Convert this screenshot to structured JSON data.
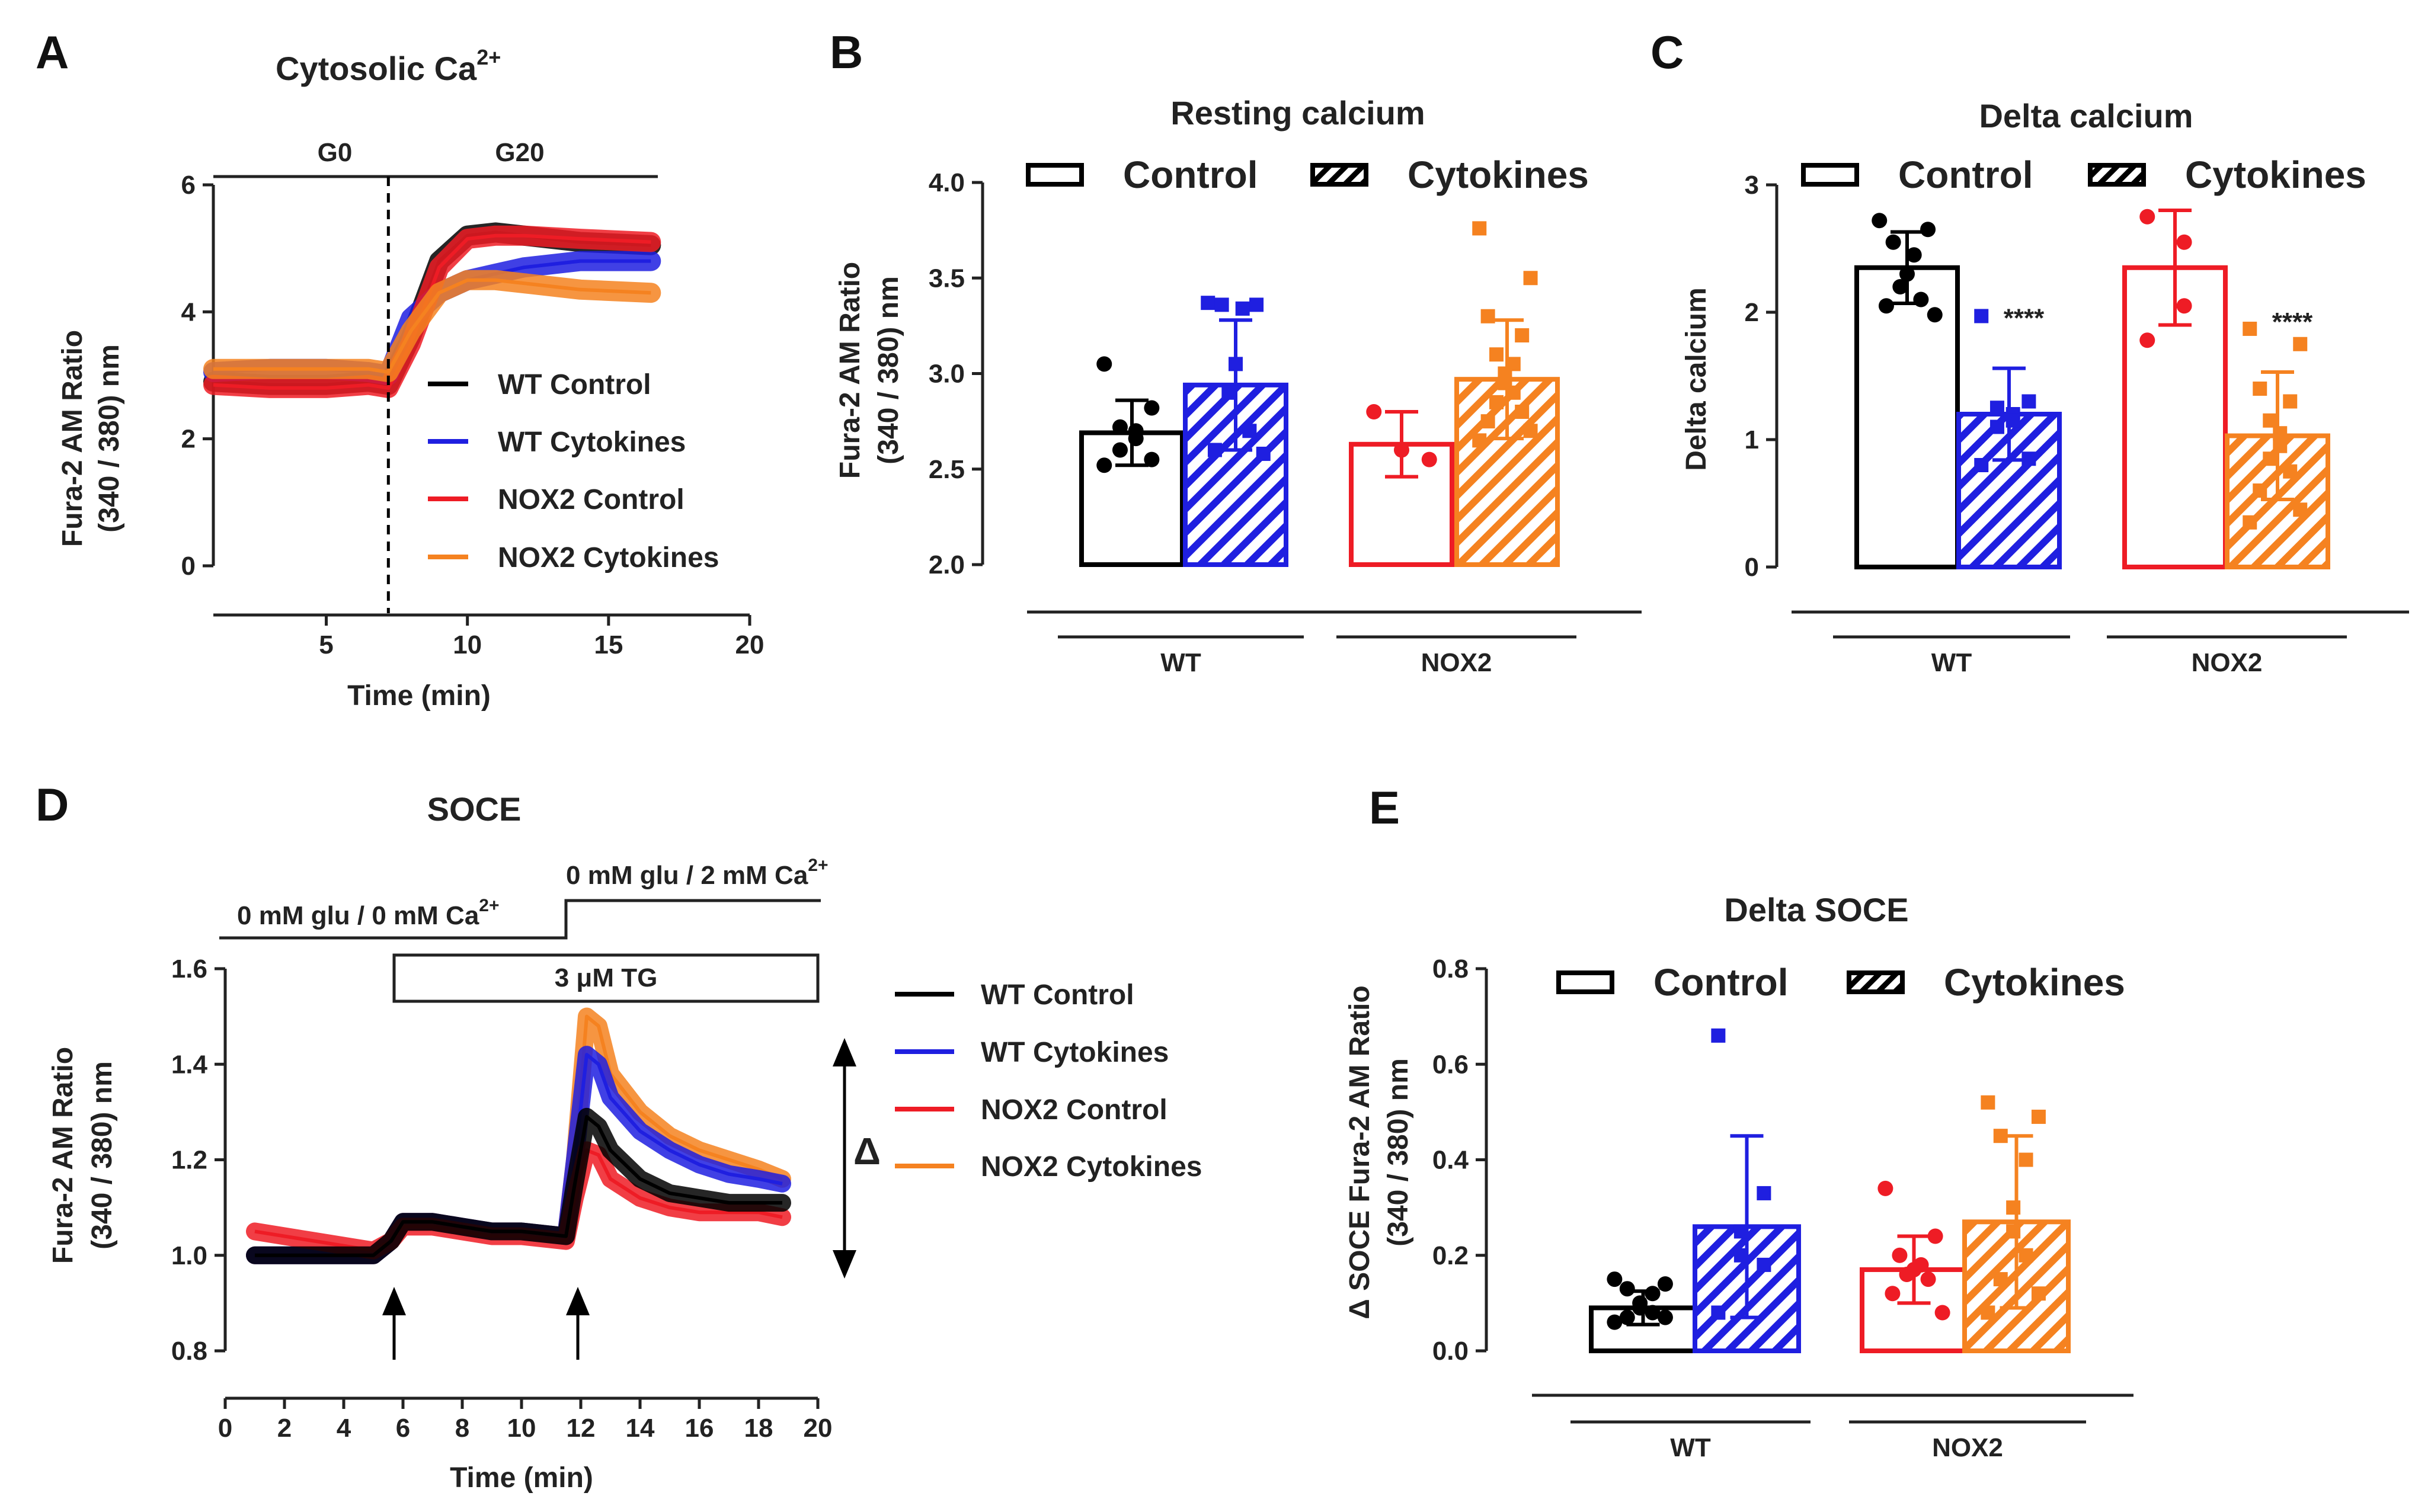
{
  "colors": {
    "wt_control": "#000000",
    "wt_cytokines": "#1f1fe0",
    "nox2_control": "#ee1c25",
    "nox2_cytokines": "#f58220",
    "axis": "#222222"
  },
  "chart_data": [
    {
      "panel": "A",
      "type": "line",
      "title_main": "Cytosolic Ca",
      "title_sup": "2+",
      "xlabel": "Time (min)",
      "ylabel_line1": "Fura-2 AM Ratio",
      "ylabel_line2": "(340 / 380) nm",
      "xlim": [
        1,
        20
      ],
      "ylim": [
        0,
        6
      ],
      "xticks": [
        "5",
        "10",
        "15",
        "20"
      ],
      "xtick_values": [
        5,
        10,
        15,
        20
      ],
      "yticks": [
        "0",
        "2",
        "4",
        "6"
      ],
      "ytick_values": [
        0,
        2,
        4,
        6
      ],
      "conditions": [
        "G0",
        "G20"
      ],
      "condition_switch_time": 7.2,
      "legend": [
        "WT Control",
        "WT Cytokines",
        "NOX2 Control",
        "NOX2 Cytokines"
      ],
      "series": [
        {
          "name": "WT Control",
          "x": [
            1,
            3,
            5,
            6.5,
            7.2,
            8,
            9,
            10,
            11,
            12,
            14,
            16.5
          ],
          "y": [
            2.9,
            2.85,
            2.85,
            2.9,
            2.85,
            3.6,
            4.8,
            5.2,
            5.25,
            5.2,
            5.1,
            5.05
          ]
        },
        {
          "name": "WT Cytokines",
          "x": [
            1,
            3,
            5,
            6.5,
            7.2,
            8,
            9,
            10,
            11,
            12,
            14,
            16.5
          ],
          "y": [
            3.05,
            3.1,
            3.1,
            3.05,
            3.0,
            3.9,
            4.3,
            4.5,
            4.6,
            4.7,
            4.8,
            4.8
          ]
        },
        {
          "name": "NOX2 Control",
          "x": [
            1,
            3,
            5,
            6.5,
            7.2,
            8,
            9,
            10,
            11,
            12,
            14,
            16.5
          ],
          "y": [
            2.85,
            2.8,
            2.8,
            2.85,
            2.8,
            3.5,
            4.7,
            5.15,
            5.2,
            5.2,
            5.15,
            5.1
          ]
        },
        {
          "name": "NOX2 Cytokines",
          "x": [
            1,
            3,
            5,
            6.5,
            7.2,
            8,
            9,
            10,
            11,
            12,
            14,
            16.5
          ],
          "y": [
            3.1,
            3.1,
            3.1,
            3.1,
            3.05,
            3.7,
            4.3,
            4.5,
            4.5,
            4.45,
            4.35,
            4.3
          ]
        }
      ]
    },
    {
      "panel": "B",
      "type": "bar",
      "title": "Resting calcium",
      "ylabel_line1": "Fura-2 AM Ratio",
      "ylabel_line2": "(340 / 380) nm",
      "ylim": [
        2.0,
        4.0
      ],
      "yticks": [
        "2.0",
        "2.5",
        "3.0",
        "3.5",
        "4.0"
      ],
      "ytick_values": [
        2.0,
        2.5,
        3.0,
        3.5,
        4.0
      ],
      "legend": [
        "Control",
        "Cytokines"
      ],
      "groups": [
        "WT",
        "NOX2"
      ],
      "bars": [
        {
          "name": "WT Control",
          "mean": 2.69,
          "sd": 0.17,
          "points": [
            3.05,
            2.82,
            2.72,
            2.7,
            2.66,
            2.6,
            2.55,
            2.52
          ]
        },
        {
          "name": "WT Cytokines",
          "mean": 2.94,
          "sd": 0.34,
          "points": [
            3.37,
            3.36,
            3.36,
            3.34,
            3.05,
            2.9,
            2.7,
            2.6,
            2.58
          ]
        },
        {
          "name": "NOX2 Control",
          "mean": 2.63,
          "sd": 0.17,
          "points": [
            2.8,
            2.6,
            2.55
          ]
        },
        {
          "name": "NOX2 Cytokines",
          "mean": 2.97,
          "sd": 0.31,
          "points": [
            3.76,
            3.5,
            3.3,
            3.2,
            3.1,
            3.05,
            3.0,
            2.95,
            2.9,
            2.85,
            2.8,
            2.75,
            2.7,
            2.65
          ]
        }
      ]
    },
    {
      "panel": "C",
      "type": "bar",
      "title": "Delta calcium",
      "ylabel": "Delta calcium",
      "ylim": [
        0,
        3
      ],
      "yticks": [
        "0",
        "1",
        "2",
        "3"
      ],
      "ytick_values": [
        0,
        1,
        2,
        3
      ],
      "legend": [
        "Control",
        "Cytokines"
      ],
      "groups": [
        "WT",
        "NOX2"
      ],
      "significance": [
        "****",
        "****"
      ],
      "bars": [
        {
          "name": "WT Control",
          "mean": 2.35,
          "sd": 0.28,
          "points": [
            2.72,
            2.65,
            2.55,
            2.45,
            2.3,
            2.2,
            2.1,
            2.05,
            1.98
          ]
        },
        {
          "name": "WT Cytokines",
          "mean": 1.2,
          "sd": 0.36,
          "points": [
            1.97,
            1.3,
            1.25,
            1.2,
            1.15,
            1.1,
            0.85,
            0.8
          ]
        },
        {
          "name": "NOX2 Control",
          "mean": 2.35,
          "sd": 0.45,
          "points": [
            2.75,
            2.55,
            2.05,
            1.78
          ]
        },
        {
          "name": "NOX2 Cytokines",
          "mean": 1.03,
          "sd": 0.5,
          "points": [
            1.87,
            1.75,
            1.4,
            1.3,
            1.15,
            1.05,
            0.95,
            0.85,
            0.75,
            0.6,
            0.45,
            0.35
          ]
        }
      ]
    },
    {
      "panel": "D",
      "type": "line",
      "title": "SOCE",
      "xlabel": "Time (min)",
      "ylabel_line1": "Fura-2 AM Ratio",
      "ylabel_line2": "(340 / 380) nm",
      "xlim": [
        0,
        20
      ],
      "ylim": [
        0.8,
        1.6
      ],
      "xticks": [
        "0",
        "2",
        "4",
        "6",
        "8",
        "10",
        "12",
        "14",
        "16",
        "18",
        "20"
      ],
      "xtick_values": [
        0,
        2,
        4,
        6,
        8,
        10,
        12,
        14,
        16,
        18,
        20
      ],
      "yticks": [
        "0.8",
        "1.0",
        "1.2",
        "1.4",
        "1.6"
      ],
      "ytick_values": [
        0.8,
        1.0,
        1.2,
        1.4,
        1.6
      ],
      "condition1": "0 mM glu / 0 mM Ca",
      "condition2": "0 mM glu / 2 mM Ca",
      "condition_sup": "2+",
      "switch_time": 11.5,
      "tg_box": "3 μM TG",
      "tg_start": 5.7,
      "arrow_times": [
        5.7,
        11.9
      ],
      "delta_symbol": "Δ",
      "legend": [
        "WT Control",
        "WT Cytokines",
        "NOX2 Control",
        "NOX2 Cytokines"
      ],
      "series": [
        {
          "name": "NOX2 Cytokines",
          "x": [
            1,
            3,
            5,
            5.6,
            6,
            7,
            8,
            9,
            10,
            11.5,
            11.8,
            12.2,
            12.6,
            13,
            14,
            15,
            16,
            17,
            18,
            18.8
          ],
          "y": [
            1.0,
            1.0,
            1.0,
            1.03,
            1.07,
            1.07,
            1.06,
            1.05,
            1.05,
            1.04,
            1.2,
            1.5,
            1.48,
            1.38,
            1.3,
            1.25,
            1.22,
            1.2,
            1.18,
            1.16
          ]
        },
        {
          "name": "WT Cytokines",
          "x": [
            1,
            3,
            5,
            5.6,
            6,
            7,
            8,
            9,
            10,
            11.5,
            11.8,
            12.2,
            12.6,
            13,
            14,
            15,
            16,
            17,
            18,
            18.8
          ],
          "y": [
            1.0,
            1.0,
            1.0,
            1.03,
            1.07,
            1.07,
            1.06,
            1.05,
            1.05,
            1.04,
            1.2,
            1.42,
            1.4,
            1.33,
            1.26,
            1.22,
            1.19,
            1.17,
            1.16,
            1.15
          ]
        },
        {
          "name": "NOX2 Control",
          "x": [
            1,
            3,
            5,
            5.6,
            6,
            7,
            8,
            9,
            10,
            11.5,
            11.8,
            12.2,
            12.6,
            13,
            14,
            15,
            16,
            17,
            18,
            18.8
          ],
          "y": [
            1.05,
            1.03,
            1.01,
            1.03,
            1.06,
            1.06,
            1.05,
            1.04,
            1.04,
            1.03,
            1.12,
            1.22,
            1.21,
            1.16,
            1.12,
            1.1,
            1.09,
            1.09,
            1.09,
            1.08
          ]
        },
        {
          "name": "WT Control",
          "x": [
            1,
            3,
            5,
            5.6,
            6,
            7,
            8,
            9,
            10,
            11.5,
            11.8,
            12.2,
            12.6,
            13,
            14,
            15,
            16,
            17,
            18,
            18.8
          ],
          "y": [
            1.0,
            1.0,
            1.0,
            1.03,
            1.07,
            1.07,
            1.06,
            1.05,
            1.05,
            1.04,
            1.15,
            1.29,
            1.27,
            1.22,
            1.16,
            1.13,
            1.12,
            1.11,
            1.11,
            1.11
          ]
        }
      ]
    },
    {
      "panel": "E",
      "type": "bar",
      "title": "Delta SOCE",
      "ylabel_line1": "Δ SOCE Fura-2 AM Ratio",
      "ylabel_line2": "(340 / 380) nm",
      "ylim": [
        0.0,
        0.8
      ],
      "yticks": [
        "0.0",
        "0.2",
        "0.4",
        "0.6",
        "0.8"
      ],
      "ytick_values": [
        0.0,
        0.2,
        0.4,
        0.6,
        0.8
      ],
      "legend": [
        "Control",
        "Cytokines"
      ],
      "groups": [
        "WT",
        "NOX2"
      ],
      "bars": [
        {
          "name": "WT Control",
          "mean": 0.09,
          "sd": 0.035,
          "points": [
            0.15,
            0.14,
            0.13,
            0.12,
            0.1,
            0.09,
            0.08,
            0.07,
            0.07,
            0.06
          ]
        },
        {
          "name": "WT Cytokines",
          "mean": 0.26,
          "sd": 0.19,
          "points": [
            0.66,
            0.33,
            0.25,
            0.2,
            0.18,
            0.08
          ]
        },
        {
          "name": "NOX2 Control",
          "mean": 0.17,
          "sd": 0.07,
          "points": [
            0.34,
            0.24,
            0.2,
            0.18,
            0.17,
            0.16,
            0.15,
            0.12,
            0.08
          ]
        },
        {
          "name": "NOX2 Cytokines",
          "mean": 0.27,
          "sd": 0.18,
          "points": [
            0.52,
            0.49,
            0.45,
            0.4,
            0.3,
            0.25,
            0.2,
            0.15,
            0.12,
            0.08
          ]
        }
      ]
    }
  ]
}
